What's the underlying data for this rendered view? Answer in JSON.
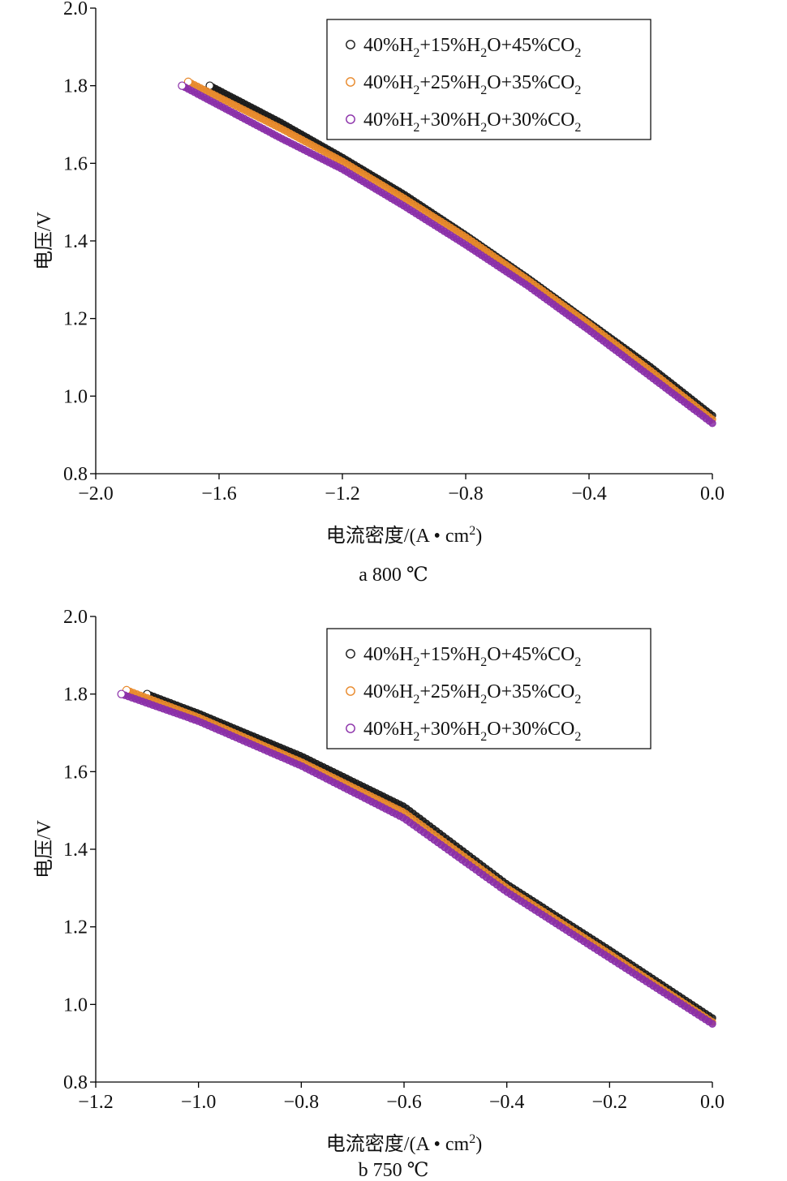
{
  "chart_data": [
    {
      "type": "scatter",
      "caption": "a 800 ℃",
      "xlabel": "电流密度/(A • cm",
      "xlabel_sup": "2",
      "xlabel_end": ")",
      "ylabel": "电压/V",
      "xlim": [
        -2.0,
        0.0
      ],
      "ylim": [
        0.8,
        2.0
      ],
      "x_ticks": [
        -2.0,
        -1.6,
        -1.2,
        -0.8,
        -0.4,
        0.0
      ],
      "x_tick_labels": [
        "−2.0",
        "−1.6",
        "−1.2",
        "−0.8",
        "−0.4",
        "0.0"
      ],
      "y_ticks": [
        0.8,
        1.0,
        1.2,
        1.4,
        1.6,
        1.8,
        2.0
      ],
      "y_tick_labels": [
        "0.8",
        "1.0",
        "1.2",
        "1.4",
        "1.6",
        "1.8",
        "2.0"
      ],
      "legend_position": "top-right",
      "series": [
        {
          "name": "40%H2+15%H2O+45%CO2",
          "name_parts": [
            [
              "40%H",
              ""
            ],
            [
              "2",
              "sub"
            ],
            [
              "+15%H",
              ""
            ],
            [
              "2",
              "sub"
            ],
            [
              "O+45%CO",
              ""
            ],
            [
              "2",
              "sub"
            ]
          ],
          "color": "#1a1a1a",
          "points": [
            [
              -1.63,
              1.8
            ],
            [
              -1.4,
              1.705
            ],
            [
              -1.2,
              1.615
            ],
            [
              -1.0,
              1.52
            ],
            [
              -0.8,
              1.415
            ],
            [
              -0.6,
              1.305
            ],
            [
              -0.4,
              1.19
            ],
            [
              -0.2,
              1.075
            ],
            [
              0.0,
              0.95
            ]
          ]
        },
        {
          "name": "40%H2+25%H2O+35%CO2",
          "name_parts": [
            [
              "40%H",
              ""
            ],
            [
              "2",
              "sub"
            ],
            [
              "+25%H",
              ""
            ],
            [
              "2",
              "sub"
            ],
            [
              "O+35%CO",
              ""
            ],
            [
              "2",
              "sub"
            ]
          ],
          "color": "#e8892b",
          "points": [
            [
              -1.7,
              1.81
            ],
            [
              -1.4,
              1.69
            ],
            [
              -1.2,
              1.605
            ],
            [
              -1.0,
              1.51
            ],
            [
              -0.8,
              1.41
            ],
            [
              -0.6,
              1.3
            ],
            [
              -0.4,
              1.185
            ],
            [
              -0.2,
              1.065
            ],
            [
              0.0,
              0.94
            ]
          ]
        },
        {
          "name": "40%H2+30%H2O+30%CO2",
          "name_parts": [
            [
              "40%H",
              ""
            ],
            [
              "2",
              "sub"
            ],
            [
              "+30%H",
              ""
            ],
            [
              "2",
              "sub"
            ],
            [
              "O+30%CO",
              ""
            ],
            [
              "2",
              "sub"
            ]
          ],
          "color": "#8a2ea8",
          "points": [
            [
              -1.72,
              1.8
            ],
            [
              -1.4,
              1.665
            ],
            [
              -1.2,
              1.585
            ],
            [
              -1.0,
              1.49
            ],
            [
              -0.8,
              1.39
            ],
            [
              -0.6,
              1.285
            ],
            [
              -0.4,
              1.17
            ],
            [
              -0.2,
              1.05
            ],
            [
              0.0,
              0.93
            ]
          ]
        }
      ]
    },
    {
      "type": "scatter",
      "caption": "b  750 ℃",
      "xlabel": "电流密度/(A • cm",
      "xlabel_sup": "2",
      "xlabel_end": ")",
      "ylabel": "电压/V",
      "xlim": [
        -1.2,
        0.0
      ],
      "ylim": [
        0.8,
        2.0
      ],
      "x_ticks": [
        -1.2,
        -1.0,
        -0.8,
        -0.6,
        -0.4,
        -0.2,
        0.0
      ],
      "x_tick_labels": [
        "−1.2",
        "−1.0",
        "−0.8",
        "−0.6",
        "−0.4",
        "−0.2",
        "0.0"
      ],
      "y_ticks": [
        0.8,
        1.0,
        1.2,
        1.4,
        1.6,
        1.8,
        2.0
      ],
      "y_tick_labels": [
        "0.8",
        "1.0",
        "1.2",
        "1.4",
        "1.6",
        "1.8",
        "2.0"
      ],
      "legend_position": "top-right",
      "series": [
        {
          "name": "40%H2+15%H2O+45%CO2",
          "name_parts": [
            [
              "40%H",
              ""
            ],
            [
              "2",
              "sub"
            ],
            [
              "+15%H",
              ""
            ],
            [
              "2",
              "sub"
            ],
            [
              "O+45%CO",
              ""
            ],
            [
              "2",
              "sub"
            ]
          ],
          "color": "#1a1a1a",
          "points": [
            [
              -1.1,
              1.8
            ],
            [
              -1.0,
              1.75
            ],
            [
              -0.8,
              1.64
            ],
            [
              -0.6,
              1.51
            ],
            [
              -0.4,
              1.31
            ],
            [
              -0.2,
              1.14
            ],
            [
              0.0,
              0.965
            ]
          ]
        },
        {
          "name": "40%H2+25%H2O+35%CO2",
          "name_parts": [
            [
              "40%H",
              ""
            ],
            [
              "2",
              "sub"
            ],
            [
              "+25%H",
              ""
            ],
            [
              "2",
              "sub"
            ],
            [
              "O+35%CO",
              ""
            ],
            [
              "2",
              "sub"
            ]
          ],
          "color": "#e8892b",
          "points": [
            [
              -1.14,
              1.81
            ],
            [
              -1.0,
              1.74
            ],
            [
              -0.8,
              1.625
            ],
            [
              -0.6,
              1.495
            ],
            [
              -0.4,
              1.3
            ],
            [
              -0.2,
              1.13
            ],
            [
              0.0,
              0.955
            ]
          ]
        },
        {
          "name": "40%H2+30%H2O+30%CO2",
          "name_parts": [
            [
              "40%H",
              ""
            ],
            [
              "2",
              "sub"
            ],
            [
              "+30%H",
              ""
            ],
            [
              "2",
              "sub"
            ],
            [
              "O+30%CO",
              ""
            ],
            [
              "2",
              "sub"
            ]
          ],
          "color": "#8a2ea8",
          "points": [
            [
              -1.15,
              1.8
            ],
            [
              -1.0,
              1.73
            ],
            [
              -0.8,
              1.615
            ],
            [
              -0.6,
              1.48
            ],
            [
              -0.4,
              1.29
            ],
            [
              -0.2,
              1.12
            ],
            [
              0.0,
              0.95
            ]
          ]
        }
      ]
    }
  ]
}
